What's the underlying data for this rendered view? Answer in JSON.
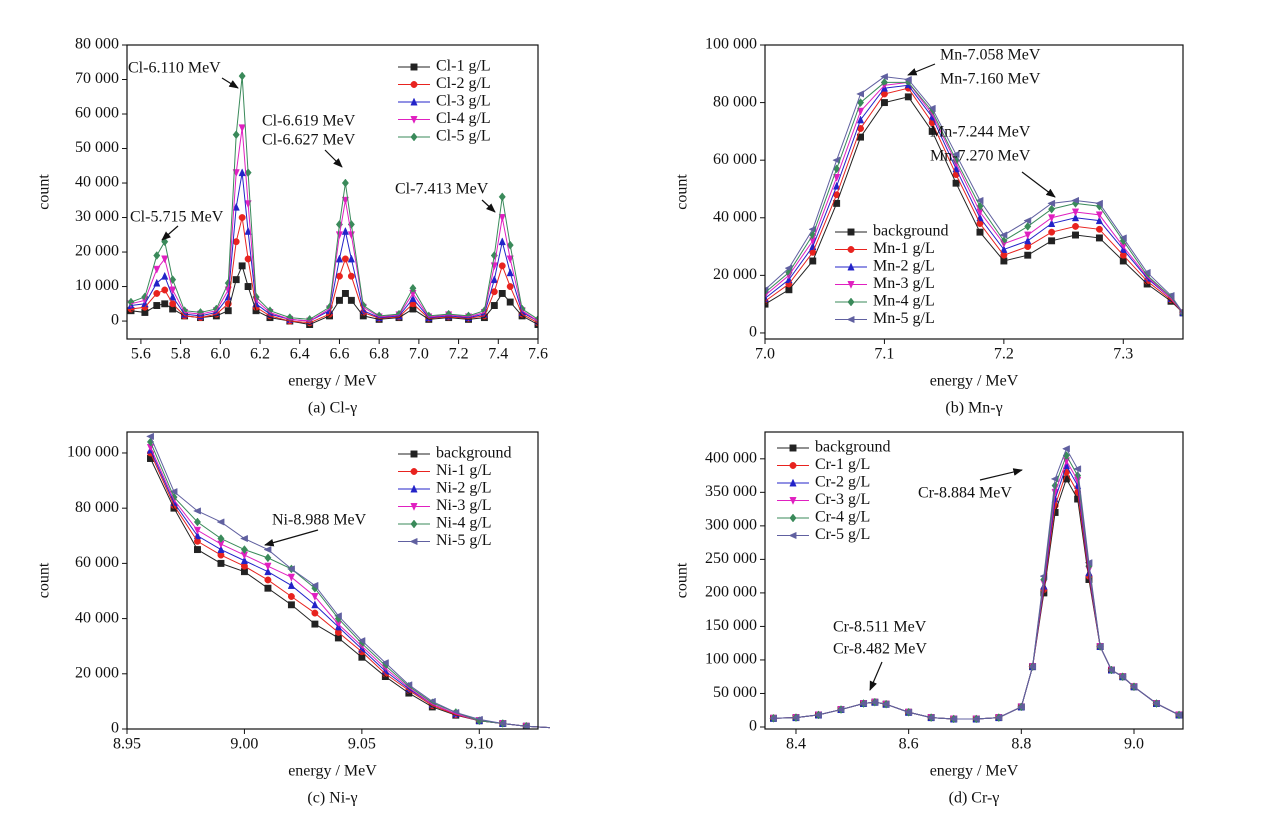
{
  "chart_data": [
    {
      "type": "line",
      "caption": "(a) Cl-γ",
      "xlabel": "energy / MeV",
      "ylabel": "count",
      "legend": "upper right",
      "xlim": [
        5.53,
        7.6
      ],
      "ylim": [
        -5200,
        80000
      ],
      "xticks": [
        5.6,
        5.8,
        {
          "value": 6,
          "label": "6.0"
        },
        6.2,
        6.4,
        6.6,
        6.8,
        {
          "value": 7,
          "label": "7.0"
        },
        7.2,
        7.4,
        7.6
      ],
      "yticks": [
        0,
        {
          "value": 10000,
          "label": "10 000"
        },
        {
          "value": 20000,
          "label": "20 000"
        },
        {
          "value": 30000,
          "label": "30 000"
        },
        {
          "value": 40000,
          "label": "40 000"
        },
        {
          "value": 50000,
          "label": "50 000"
        },
        {
          "value": 60000,
          "label": "60 000"
        },
        {
          "value": 70000,
          "label": "70 000"
        },
        {
          "value": 80000,
          "label": "80 000"
        }
      ],
      "annotations": [
        "Cl-6.110 MeV",
        "Cl-6.619 MeV",
        "Cl-6.627 MeV",
        "Cl-7.413 MeV",
        "Cl-5.715 MeV"
      ],
      "x": [
        5.55,
        5.62,
        5.68,
        5.72,
        5.76,
        5.82,
        5.9,
        5.98,
        6.04,
        6.08,
        6.11,
        6.14,
        6.18,
        6.25,
        6.35,
        6.45,
        6.55,
        6.6,
        6.63,
        6.66,
        6.72,
        6.8,
        6.9,
        6.97,
        7.05,
        7.15,
        7.25,
        7.33,
        7.38,
        7.42,
        7.46,
        7.52,
        7.6
      ],
      "series": [
        {
          "name": "Cl-1 g/L",
          "color": "#222222",
          "marker": "square",
          "values": [
            3000,
            2500,
            4500,
            5000,
            3500,
            1500,
            1000,
            1500,
            3000,
            12000,
            16000,
            10000,
            3000,
            1000,
            0,
            -1000,
            1500,
            6000,
            8000,
            6000,
            1500,
            500,
            1000,
            3500,
            500,
            1000,
            500,
            1000,
            4500,
            8000,
            5500,
            1500,
            -1000
          ]
        },
        {
          "name": "Cl-2 g/L",
          "color": "#e8231f",
          "marker": "circle",
          "values": [
            3500,
            4000,
            8000,
            9000,
            5000,
            1500,
            1000,
            2000,
            5000,
            23000,
            30000,
            18000,
            4000,
            1500,
            0,
            -500,
            2000,
            13000,
            18000,
            13000,
            2500,
            800,
            1200,
            5000,
            800,
            1200,
            800,
            1500,
            8500,
            16000,
            10000,
            2000,
            -500
          ]
        },
        {
          "name": "Cl-3 g/L",
          "color": "#2323c8",
          "marker": "triangle-up",
          "values": [
            4500,
            5000,
            11000,
            13000,
            7000,
            2000,
            1500,
            2500,
            7000,
            33000,
            43000,
            26000,
            5000,
            2000,
            500,
            0,
            3000,
            18000,
            26000,
            18000,
            3000,
            1000,
            1500,
            6500,
            1000,
            1500,
            1000,
            2000,
            12000,
            23000,
            14000,
            2500,
            0
          ]
        },
        {
          "name": "Cl-4 g/L",
          "color": "#e020c0",
          "marker": "triangle-down",
          "values": [
            5000,
            6000,
            15000,
            18000,
            9000,
            2500,
            2000,
            3000,
            9000,
            43000,
            56000,
            34000,
            6000,
            2500,
            500,
            0,
            3500,
            25000,
            35000,
            25000,
            4000,
            1200,
            1800,
            8000,
            1200,
            1800,
            1200,
            2500,
            16000,
            30000,
            18000,
            3000,
            0
          ]
        },
        {
          "name": "Cl-5 g/L",
          "color": "#3a8a5a",
          "marker": "diamond",
          "values": [
            5500,
            7000,
            19000,
            23000,
            12000,
            3000,
            2500,
            3500,
            11000,
            54000,
            71000,
            43000,
            7000,
            3000,
            1000,
            500,
            4000,
            28000,
            40000,
            28000,
            4500,
            1500,
            2000,
            9500,
            1500,
            2000,
            1500,
            3000,
            19000,
            36000,
            22000,
            3500,
            500
          ]
        }
      ]
    },
    {
      "type": "line",
      "caption": "(b) Mn-γ",
      "xlabel": "energy / MeV",
      "ylabel": "count",
      "legend": "lower left",
      "xlim": [
        7.0,
        7.35
      ],
      "ylim": [
        -2100,
        100000
      ],
      "xticks": [
        {
          "value": 7,
          "label": "7.0"
        },
        7.1,
        7.2,
        7.3
      ],
      "yticks": [
        0,
        {
          "value": 20000,
          "label": "20 000"
        },
        {
          "value": 40000,
          "label": "40 000"
        },
        {
          "value": 60000,
          "label": "60 000"
        },
        {
          "value": 80000,
          "label": "80 000"
        },
        {
          "value": 100000,
          "label": "100 000"
        }
      ],
      "annotations": [
        "Mn-7.058 MeV",
        "Mn-7.160 MeV",
        "Mn-7.244 MeV",
        "Mn-7.270 MeV"
      ],
      "x": [
        7.0,
        7.02,
        7.04,
        7.06,
        7.08,
        7.1,
        7.12,
        7.14,
        7.16,
        7.18,
        7.2,
        7.22,
        7.24,
        7.26,
        7.28,
        7.3,
        7.32,
        7.34,
        7.35
      ],
      "series": [
        {
          "name": "background",
          "color": "#222222",
          "marker": "square",
          "values": [
            10000,
            15000,
            25000,
            45000,
            68000,
            80000,
            82000,
            70000,
            52000,
            35000,
            25000,
            27000,
            32000,
            34000,
            33000,
            25000,
            17000,
            11000,
            7000
          ]
        },
        {
          "name": "Mn-1 g/L",
          "color": "#e8231f",
          "marker": "circle",
          "values": [
            11000,
            17000,
            28000,
            48000,
            71000,
            83000,
            85000,
            73000,
            55000,
            38000,
            27000,
            30000,
            35000,
            37000,
            36000,
            27000,
            18000,
            11500,
            7000
          ]
        },
        {
          "name": "Mn-2 g/L",
          "color": "#2323c8",
          "marker": "triangle-up",
          "values": [
            12000,
            18500,
            30000,
            51000,
            74000,
            85000,
            86000,
            75000,
            57000,
            40000,
            29000,
            32000,
            38000,
            40000,
            39000,
            29000,
            19000,
            12000,
            7000
          ]
        },
        {
          "name": "Mn-3 g/L",
          "color": "#e020c0",
          "marker": "triangle-down",
          "values": [
            13000,
            20000,
            32000,
            54000,
            77000,
            86000,
            87000,
            76000,
            59000,
            42000,
            31000,
            34000,
            40000,
            42000,
            41000,
            30000,
            19500,
            12000,
            7000
          ]
        },
        {
          "name": "Mn-4 g/L",
          "color": "#3a8a5a",
          "marker": "diamond",
          "values": [
            14000,
            21000,
            34000,
            57000,
            80000,
            87000,
            87000,
            77000,
            60000,
            44000,
            32000,
            37000,
            43000,
            45000,
            44000,
            32000,
            20000,
            12500,
            7000
          ]
        },
        {
          "name": "Mn-5 g/L",
          "color": "#6060a0",
          "marker": "triangle-left",
          "values": [
            15000,
            22500,
            36000,
            60000,
            83000,
            89000,
            88000,
            78000,
            62000,
            46000,
            34000,
            39000,
            45000,
            46000,
            45000,
            33000,
            21000,
            13000,
            7000
          ]
        }
      ]
    },
    {
      "type": "line",
      "caption": "(c) Ni-γ",
      "xlabel": "energy / MeV",
      "ylabel": "count",
      "legend": "upper right",
      "xlim": [
        8.95,
        9.125
      ],
      "ylim": [
        0,
        107600
      ],
      "xticks": [
        8.95,
        {
          "value": 9,
          "label": "9.00"
        },
        9.05,
        {
          "value": 9.1,
          "label": "9.10"
        }
      ],
      "yticks": [
        0,
        {
          "value": 20000,
          "label": "20 000"
        },
        {
          "value": 40000,
          "label": "40 000"
        },
        {
          "value": 60000,
          "label": "60 000"
        },
        {
          "value": 80000,
          "label": "80 000"
        },
        {
          "value": 100000,
          "label": "100 000"
        }
      ],
      "annotations": [
        "Ni-8.988 MeV"
      ],
      "x": [
        8.96,
        8.97,
        8.98,
        8.99,
        9.0,
        9.01,
        9.02,
        9.03,
        9.04,
        9.05,
        9.06,
        9.07,
        9.08,
        9.09,
        9.1,
        9.11,
        9.12,
        9.13
      ],
      "series": [
        {
          "name": "background",
          "color": "#222222",
          "marker": "square",
          "values": [
            98000,
            80000,
            65000,
            60000,
            57000,
            51000,
            45000,
            38000,
            33000,
            26000,
            19000,
            13000,
            8000,
            5000,
            3000,
            2000,
            1000,
            500
          ]
        },
        {
          "name": "Ni-1 g/L",
          "color": "#e8231f",
          "marker": "circle",
          "values": [
            100000,
            81000,
            68000,
            63000,
            59000,
            54000,
            48000,
            42000,
            35000,
            28000,
            20000,
            14000,
            8500,
            5200,
            3000,
            2000,
            1000,
            500
          ]
        },
        {
          "name": "Ni-2 g/L",
          "color": "#2323c8",
          "marker": "triangle-up",
          "values": [
            101000,
            82000,
            70000,
            65000,
            61000,
            57000,
            52000,
            45000,
            37000,
            29000,
            21000,
            14500,
            9000,
            5500,
            3000,
            2000,
            1000,
            500
          ]
        },
        {
          "name": "Ni-3 g/L",
          "color": "#e020c0",
          "marker": "triangle-down",
          "values": [
            102000,
            83000,
            72000,
            67000,
            63000,
            59000,
            55000,
            48000,
            38000,
            30000,
            22000,
            15000,
            9000,
            5500,
            3000,
            2000,
            1000,
            500
          ]
        },
        {
          "name": "Ni-4 g/L",
          "color": "#3a8a5a",
          "marker": "diamond",
          "values": [
            104000,
            84000,
            75000,
            69000,
            65000,
            62000,
            58000,
            51000,
            40000,
            31000,
            23000,
            15500,
            9500,
            6000,
            3000,
            2000,
            1000,
            500
          ]
        },
        {
          "name": "Ni-5 g/L",
          "color": "#6060a0",
          "marker": "triangle-left",
          "values": [
            106000,
            86000,
            79000,
            75000,
            69000,
            65000,
            58000,
            52000,
            41000,
            32000,
            24000,
            16000,
            10000,
            6000,
            3500,
            2000,
            1000,
            500
          ]
        }
      ]
    },
    {
      "type": "line",
      "caption": "(d) Cr-γ",
      "xlabel": "energy / MeV",
      "ylabel": "count",
      "legend": "upper left",
      "xlim": [
        8.345,
        9.087
      ],
      "ylim": [
        -3000,
        440000
      ],
      "xticks": [
        8.4,
        8.6,
        8.8,
        {
          "value": 9,
          "label": "9.0"
        }
      ],
      "yticks": [
        0,
        {
          "value": 50000,
          "label": "50 000"
        },
        {
          "value": 100000,
          "label": "100 000"
        },
        {
          "value": 150000,
          "label": "150 000"
        },
        {
          "value": 200000,
          "label": "200 000"
        },
        {
          "value": 250000,
          "label": "250 000"
        },
        {
          "value": 300000,
          "label": "300 000"
        },
        {
          "value": 350000,
          "label": "350 000"
        },
        {
          "value": 400000,
          "label": "400 000"
        }
      ],
      "annotations": [
        "Cr-8.884 MeV",
        "Cr-8.511 MeV",
        "Cr-8.482 MeV"
      ],
      "x": [
        8.36,
        8.4,
        8.44,
        8.48,
        8.52,
        8.54,
        8.56,
        8.6,
        8.64,
        8.68,
        8.72,
        8.76,
        8.8,
        8.82,
        8.84,
        8.86,
        8.88,
        8.9,
        8.92,
        8.94,
        8.96,
        8.98,
        9.0,
        9.04,
        9.08
      ],
      "series": [
        {
          "name": "background",
          "color": "#222222",
          "marker": "square",
          "values": [
            13000,
            14000,
            18000,
            26000,
            35000,
            37000,
            34000,
            22000,
            14000,
            12000,
            12000,
            14000,
            30000,
            90000,
            200000,
            320000,
            370000,
            340000,
            220000,
            120000,
            85000,
            75000,
            60000,
            35000,
            18000
          ]
        },
        {
          "name": "Cr-1 g/L",
          "color": "#e8231f",
          "marker": "circle",
          "values": [
            13000,
            14000,
            18000,
            26000,
            35000,
            37000,
            34000,
            22000,
            14000,
            12000,
            12000,
            14000,
            30000,
            90000,
            205000,
            330000,
            380000,
            350000,
            225000,
            120000,
            85000,
            75000,
            60000,
            35000,
            18000
          ]
        },
        {
          "name": "Cr-2 g/L",
          "color": "#2323c8",
          "marker": "triangle-up",
          "values": [
            13000,
            14000,
            18000,
            26000,
            35000,
            37000,
            34000,
            22000,
            14000,
            12000,
            12000,
            14000,
            30000,
            90000,
            210000,
            340000,
            390000,
            360000,
            230000,
            120000,
            85000,
            75000,
            60000,
            35000,
            18000
          ]
        },
        {
          "name": "Cr-3 g/L",
          "color": "#e020c0",
          "marker": "triangle-down",
          "values": [
            13000,
            14000,
            18000,
            26000,
            35000,
            37000,
            34000,
            22000,
            14000,
            12000,
            12000,
            14000,
            30000,
            90000,
            215000,
            350000,
            397000,
            368000,
            235000,
            120000,
            85000,
            75000,
            60000,
            35000,
            18000
          ]
        },
        {
          "name": "Cr-4 g/L",
          "color": "#3a8a5a",
          "marker": "diamond",
          "values": [
            13000,
            14000,
            18000,
            26000,
            35000,
            37000,
            34000,
            22000,
            14000,
            12000,
            12000,
            14000,
            30000,
            90000,
            220000,
            360000,
            405000,
            375000,
            240000,
            120000,
            85000,
            75000,
            60000,
            35000,
            18000
          ]
        },
        {
          "name": "Cr-5 g/L",
          "color": "#6060a0",
          "marker": "triangle-left",
          "values": [
            13000,
            14000,
            18000,
            26000,
            35000,
            37000,
            34000,
            22000,
            14000,
            12000,
            12000,
            14000,
            30000,
            90000,
            225000,
            370000,
            415000,
            385000,
            245000,
            120000,
            85000,
            75000,
            60000,
            35000,
            18000
          ]
        }
      ]
    }
  ]
}
